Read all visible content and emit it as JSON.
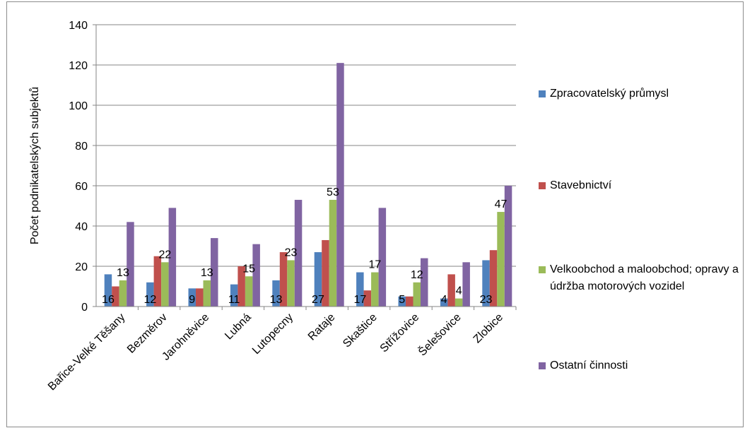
{
  "chart_data": {
    "type": "bar",
    "title": "",
    "xlabel": "",
    "ylabel": "Počet podnikatelských subjektů",
    "ylim": [
      0,
      140
    ],
    "yticks": [
      0,
      20,
      40,
      60,
      80,
      100,
      120,
      140
    ],
    "grid": true,
    "legend_position": "right",
    "categories": [
      "Bařice-Velké Těšany",
      "Bezměrov",
      "Jarohněvice",
      "Lubná",
      "Lutopecny",
      "Rataje",
      "Skaštice",
      "Střížovice",
      "Šelešovice",
      "Zlobice"
    ],
    "series": [
      {
        "name": "Zpracovatelský průmysl",
        "color": "#4f81bd",
        "values": [
          16,
          12,
          9,
          11,
          13,
          27,
          17,
          5,
          4,
          23
        ]
      },
      {
        "name": "Stavebnictví",
        "color": "#c0504d",
        "values": [
          10,
          25,
          9,
          20,
          27,
          33,
          8,
          5,
          16,
          28
        ]
      },
      {
        "name": "Velkoobchod a maloobchod; opravy a údržba motorových vozidel",
        "color": "#9bbb59",
        "values": [
          13,
          22,
          13,
          15,
          23,
          53,
          17,
          12,
          4,
          47
        ]
      },
      {
        "name": "Ostatní činnosti",
        "color": "#8064a2",
        "values": [
          42,
          49,
          34,
          31,
          53,
          121,
          49,
          24,
          22,
          60
        ]
      }
    ],
    "data_labels": [
      {
        "category": "Bařice-Velké Těšany",
        "series": "Zpracovatelský průmysl",
        "text": "16"
      },
      {
        "category": "Bařice-Velké Těšany",
        "series": "Velkoobchod a maloobchod; opravy a údržba motorových vozidel",
        "text": "13"
      },
      {
        "category": "Bezměrov",
        "series": "Zpracovatelský průmysl",
        "text": "12"
      },
      {
        "category": "Bezměrov",
        "series": "Velkoobchod a maloobchod; opravy a údržba motorových vozidel",
        "text": "22"
      },
      {
        "category": "Jarohněvice",
        "series": "Zpracovatelský průmysl",
        "text": "9"
      },
      {
        "category": "Jarohněvice",
        "series": "Velkoobchod a maloobchod; opravy a údržba motorových vozidel",
        "text": "13"
      },
      {
        "category": "Lubná",
        "series": "Zpracovatelský průmysl",
        "text": "11"
      },
      {
        "category": "Lubná",
        "series": "Velkoobchod a maloobchod; opravy a údržba motorových vozidel",
        "text": "15"
      },
      {
        "category": "Lutopecny",
        "series": "Zpracovatelský průmysl",
        "text": "13"
      },
      {
        "category": "Lutopecny",
        "series": "Velkoobchod a maloobchod; opravy a údržba motorových vozidel",
        "text": "23"
      },
      {
        "category": "Rataje",
        "series": "Zpracovatelský průmysl",
        "text": "27"
      },
      {
        "category": "Rataje",
        "series": "Velkoobchod a maloobchod; opravy a údržba motorových vozidel",
        "text": "53"
      },
      {
        "category": "Skaštice",
        "series": "Zpracovatelský průmysl",
        "text": "17"
      },
      {
        "category": "Skaštice",
        "series": "Velkoobchod a maloobchod; opravy a údržba motorových vozidel",
        "text": "17"
      },
      {
        "category": "Střížovice",
        "series": "Zpracovatelský průmysl",
        "text": "5"
      },
      {
        "category": "Střížovice",
        "series": "Velkoobchod a maloobchod; opravy a údržba motorových vozidel",
        "text": "12"
      },
      {
        "category": "Šelešovice",
        "series": "Zpracovatelský průmysl",
        "text": "4"
      },
      {
        "category": "Šelešovice",
        "series": "Velkoobchod a maloobchod; opravy a údržba motorových vozidel",
        "text": "4"
      },
      {
        "category": "Zlobice",
        "series": "Zpracovatelský průmysl",
        "text": "23"
      },
      {
        "category": "Zlobice",
        "series": "Velkoobchod a maloobchod; opravy a údržba motorových vozidel",
        "text": "47"
      }
    ]
  }
}
